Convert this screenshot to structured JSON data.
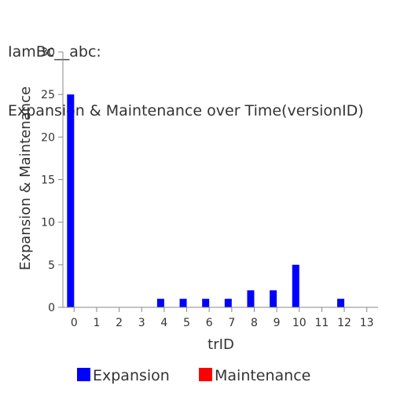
{
  "chart_data": {
    "type": "bar",
    "title_lines": [
      "IamBc__abc:",
      "Expansion & Maintenance over Time(versionID)"
    ],
    "xlabel": "trID",
    "ylabel": "Expansion & Maintenance",
    "categories": [
      "0",
      "1",
      "2",
      "3",
      "4",
      "5",
      "6",
      "7",
      "8",
      "9",
      "10",
      "11",
      "12",
      "13"
    ],
    "ylim": [
      0,
      30
    ],
    "yticks": [
      0,
      5,
      10,
      15,
      20,
      25,
      30
    ],
    "grid": false,
    "legend_position": "bottom",
    "series": [
      {
        "name": "Expansion",
        "color": "#0000ff",
        "values": [
          25,
          0,
          0,
          0,
          1,
          1,
          1,
          1,
          2,
          2,
          5,
          0,
          1,
          0
        ]
      },
      {
        "name": "Maintenance",
        "color": "#ff0000",
        "values": [
          0,
          0,
          0,
          0,
          0,
          0,
          0,
          0,
          0,
          0,
          0,
          0,
          0,
          0
        ]
      }
    ]
  }
}
